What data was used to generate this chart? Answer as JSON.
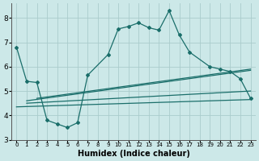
{
  "xlabel": "Humidex (Indice chaleur)",
  "bg_color": "#cce8e8",
  "grid_color": "#aacccc",
  "line_color": "#1a6e6a",
  "xlim": [
    -0.5,
    23.5
  ],
  "ylim": [
    3,
    8.6
  ],
  "yticks": [
    3,
    4,
    5,
    6,
    7,
    8
  ],
  "main_line_x": [
    0,
    1,
    2,
    3,
    4,
    5,
    6,
    7,
    9,
    10,
    11,
    12,
    13,
    14,
    15,
    16,
    17,
    19,
    20,
    21,
    22,
    23
  ],
  "main_line_y": [
    6.8,
    5.4,
    5.35,
    3.8,
    3.65,
    3.5,
    3.7,
    5.65,
    6.5,
    7.55,
    7.65,
    7.8,
    7.6,
    7.5,
    8.3,
    7.3,
    6.6,
    6.0,
    5.9,
    5.8,
    5.5,
    4.7
  ],
  "reg_line1_x": [
    0,
    23
  ],
  "reg_line1_y": [
    4.35,
    4.65
  ],
  "reg_line2_x": [
    1,
    23
  ],
  "reg_line2_y": [
    4.5,
    5.0
  ],
  "reg_line3_x": [
    1,
    23
  ],
  "reg_line3_y": [
    4.6,
    5.85
  ],
  "reg_line4_x": [
    2,
    23
  ],
  "reg_line4_y": [
    4.7,
    5.9
  ]
}
